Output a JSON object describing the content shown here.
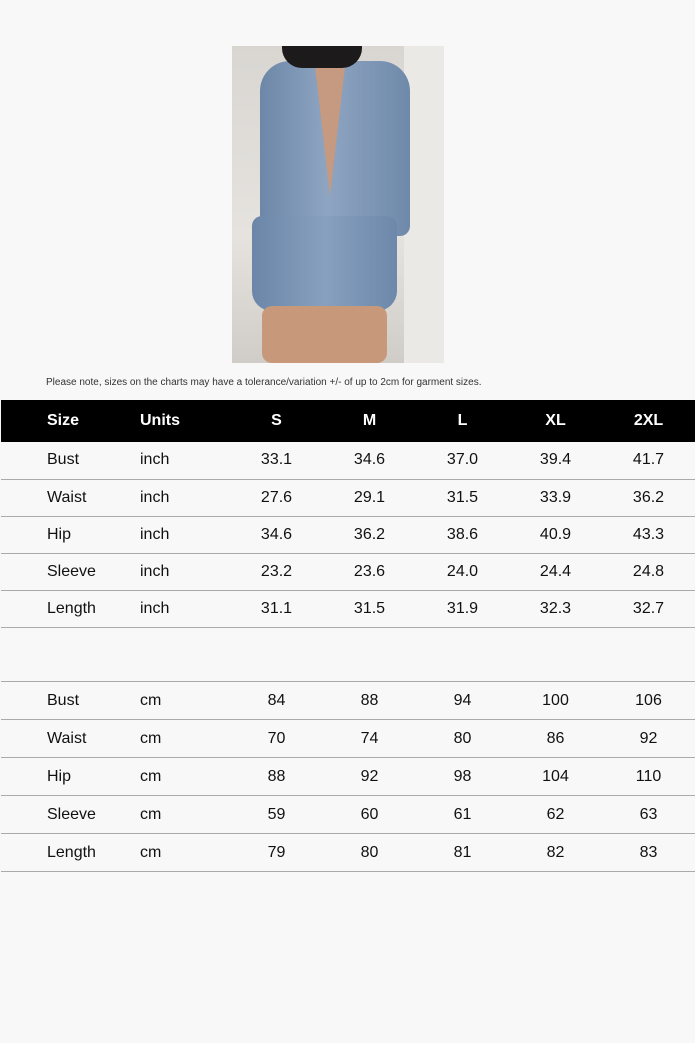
{
  "note": "Please note, sizes on the charts may have a tolerance/variation +/- of up to 2cm for garment sizes.",
  "header": [
    "Size",
    "Units",
    "S",
    "M",
    "L",
    "XL",
    "2XL"
  ],
  "inch_rows": [
    [
      "Bust",
      "inch",
      "33.1",
      "34.6",
      "37.0",
      "39.4",
      "41.7"
    ],
    [
      "Waist",
      "inch",
      "27.6",
      "29.1",
      "31.5",
      "33.9",
      "36.2"
    ],
    [
      "Hip",
      "inch",
      "34.6",
      "36.2",
      "38.6",
      "40.9",
      "43.3"
    ],
    [
      "Sleeve",
      "inch",
      "23.2",
      "23.6",
      "24.0",
      "24.4",
      "24.8"
    ],
    [
      "Length",
      "inch",
      "31.1",
      "31.5",
      "31.9",
      "32.3",
      "32.7"
    ]
  ],
  "cm_rows": [
    [
      "Bust",
      "cm",
      "84",
      "88",
      "94",
      "100",
      "106"
    ],
    [
      "Waist",
      "cm",
      "70",
      "74",
      "80",
      "86",
      "92"
    ],
    [
      "Hip",
      "cm",
      "88",
      "92",
      "98",
      "104",
      "110"
    ],
    [
      "Sleeve",
      "cm",
      "59",
      "60",
      "61",
      "62",
      "63"
    ],
    [
      "Length",
      "cm",
      "79",
      "80",
      "81",
      "82",
      "83"
    ]
  ]
}
